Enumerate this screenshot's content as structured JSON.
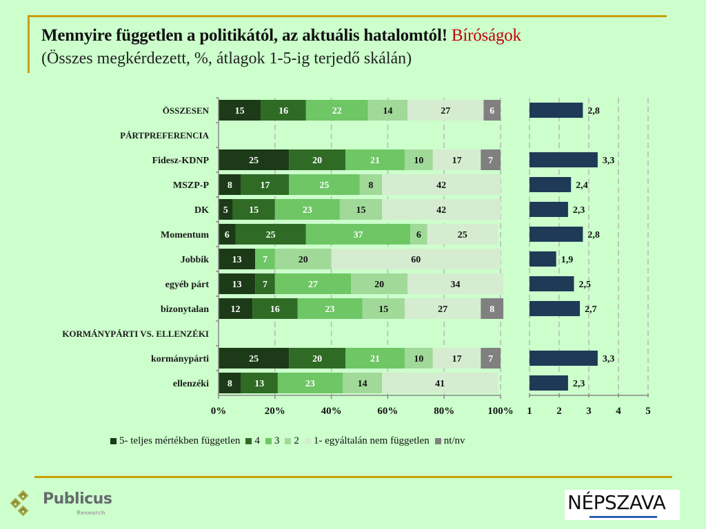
{
  "title": {
    "main": "Mennyire független a politikától, az aktuális hatalomtól!",
    "accent": "Bíróságok",
    "subtitle": "(Összes megkérdezett, %, átlagok 1-5-ig terjedő skálán)",
    "accent_color": "#c00000"
  },
  "chart_data": [
    {
      "type": "bar",
      "orientation": "horizontal",
      "stacked": "percent",
      "categories": [
        "ÖSSZESEN",
        "PÁRTPREFERENCIA",
        "Fidesz-KDNP",
        "MSZP-P",
        "DK",
        "Momentum",
        "Jobbik",
        "egyéb párt",
        "bizonytalan",
        "KORMÁNYPÁRTI VS. ELLENZÉKI",
        "kormánypárti",
        "ellenzéki"
      ],
      "header_categories": [
        "PÁRTPREFERENCIA",
        "KORMÁNYPÁRTI VS. ELLENZÉKI"
      ],
      "series": [
        {
          "name": "5- teljes mértékben független",
          "color": "#1c3a17",
          "label_color": "#ffffff",
          "values": [
            15,
            null,
            25,
            8,
            5,
            6,
            13,
            13,
            12,
            null,
            25,
            8
          ]
        },
        {
          "name": "4",
          "color": "#2f6b25",
          "label_color": "#ffffff",
          "values": [
            16,
            null,
            20,
            17,
            15,
            25,
            0,
            7,
            16,
            null,
            20,
            13
          ]
        },
        {
          "name": "3",
          "color": "#6ec665",
          "label_color": "#ffffff",
          "values": [
            22,
            null,
            21,
            25,
            23,
            37,
            7,
            27,
            23,
            null,
            21,
            23
          ]
        },
        {
          "name": "2",
          "color": "#a0d998",
          "label_color": "#111111",
          "values": [
            14,
            null,
            10,
            8,
            15,
            6,
            20,
            20,
            15,
            null,
            10,
            14
          ]
        },
        {
          "name": "1- egyáltalán nem független",
          "color": "#d5ecd0",
          "label_color": "#111111",
          "values": [
            27,
            null,
            17,
            42,
            42,
            25,
            60,
            34,
            27,
            null,
            17,
            41
          ]
        },
        {
          "name": "nt/nv",
          "color": "#808080",
          "label_color": "#ffffff",
          "values": [
            6,
            null,
            7,
            0,
            0,
            0,
            0,
            0,
            8,
            null,
            7,
            0
          ]
        }
      ],
      "xlim": [
        0,
        100
      ],
      "xticks": [
        "0%",
        "20%",
        "40%",
        "60%",
        "80%",
        "100%"
      ],
      "grid": true,
      "legend": "bottom"
    },
    {
      "type": "bar",
      "orientation": "horizontal",
      "categories": [
        "ÖSSZESEN",
        "PÁRTPREFERENCIA",
        "Fidesz-KDNP",
        "MSZP-P",
        "DK",
        "Momentum",
        "Jobbik",
        "egyéb párt",
        "bizonytalan",
        "KORMÁNYPÁRTI VS. ELLENZÉKI",
        "kormánypárti",
        "ellenzéki"
      ],
      "values": [
        2.8,
        null,
        3.3,
        2.4,
        2.3,
        2.8,
        1.9,
        2.5,
        2.7,
        null,
        3.3,
        2.3
      ],
      "labels": [
        "2,8",
        "",
        "3,3",
        "2,4",
        "2,3",
        "2,8",
        "1,9",
        "2,5",
        "2,7",
        "",
        "3,3",
        "2,3"
      ],
      "color": "#1f3a57",
      "xlim": [
        1,
        5
      ],
      "xticks": [
        "1",
        "2",
        "3",
        "4",
        "5"
      ],
      "grid": true
    }
  ],
  "logos": {
    "left": {
      "name": "Publicus",
      "sub": "Research"
    },
    "right": {
      "name": "NÉPSZAVA"
    }
  }
}
